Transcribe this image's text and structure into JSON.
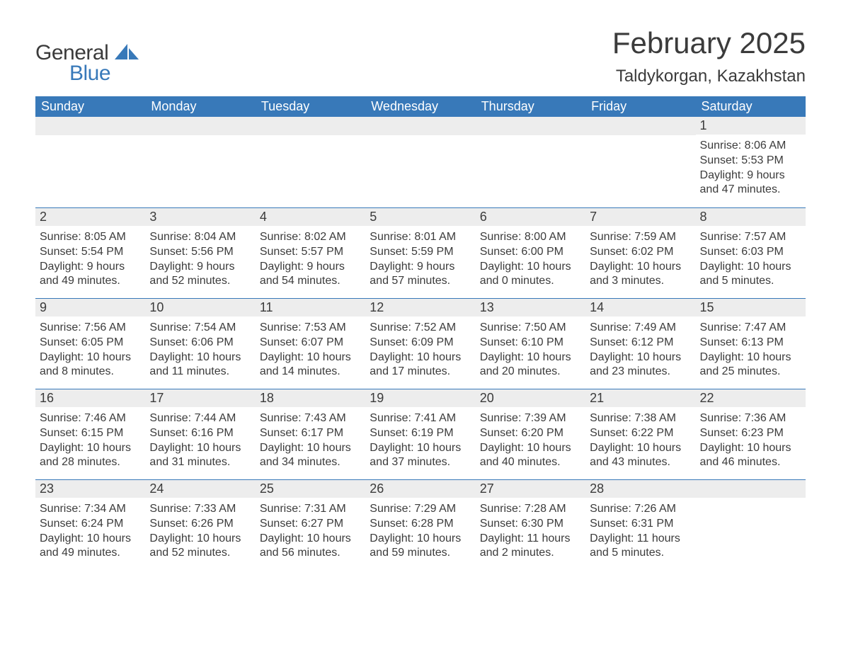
{
  "logo": {
    "text1": "General",
    "text2": "Blue",
    "accent_color": "#3879b9"
  },
  "title": "February 2025",
  "location": "Taldykorgan, Kazakhstan",
  "header_bg": "#3879b9",
  "header_fg": "#ffffff",
  "daybar_bg": "#ededed",
  "daybar_border": "#3879b9",
  "text_color": "#3b3b3b",
  "columns": [
    "Sunday",
    "Monday",
    "Tuesday",
    "Wednesday",
    "Thursday",
    "Friday",
    "Saturday"
  ],
  "weeks": [
    [
      null,
      null,
      null,
      null,
      null,
      null,
      {
        "n": "1",
        "sr": "8:06 AM",
        "ss": "5:53 PM",
        "dl": "9 hours and 47 minutes."
      }
    ],
    [
      {
        "n": "2",
        "sr": "8:05 AM",
        "ss": "5:54 PM",
        "dl": "9 hours and 49 minutes."
      },
      {
        "n": "3",
        "sr": "8:04 AM",
        "ss": "5:56 PM",
        "dl": "9 hours and 52 minutes."
      },
      {
        "n": "4",
        "sr": "8:02 AM",
        "ss": "5:57 PM",
        "dl": "9 hours and 54 minutes."
      },
      {
        "n": "5",
        "sr": "8:01 AM",
        "ss": "5:59 PM",
        "dl": "9 hours and 57 minutes."
      },
      {
        "n": "6",
        "sr": "8:00 AM",
        "ss": "6:00 PM",
        "dl": "10 hours and 0 minutes."
      },
      {
        "n": "7",
        "sr": "7:59 AM",
        "ss": "6:02 PM",
        "dl": "10 hours and 3 minutes."
      },
      {
        "n": "8",
        "sr": "7:57 AM",
        "ss": "6:03 PM",
        "dl": "10 hours and 5 minutes."
      }
    ],
    [
      {
        "n": "9",
        "sr": "7:56 AM",
        "ss": "6:05 PM",
        "dl": "10 hours and 8 minutes."
      },
      {
        "n": "10",
        "sr": "7:54 AM",
        "ss": "6:06 PM",
        "dl": "10 hours and 11 minutes."
      },
      {
        "n": "11",
        "sr": "7:53 AM",
        "ss": "6:07 PM",
        "dl": "10 hours and 14 minutes."
      },
      {
        "n": "12",
        "sr": "7:52 AM",
        "ss": "6:09 PM",
        "dl": "10 hours and 17 minutes."
      },
      {
        "n": "13",
        "sr": "7:50 AM",
        "ss": "6:10 PM",
        "dl": "10 hours and 20 minutes."
      },
      {
        "n": "14",
        "sr": "7:49 AM",
        "ss": "6:12 PM",
        "dl": "10 hours and 23 minutes."
      },
      {
        "n": "15",
        "sr": "7:47 AM",
        "ss": "6:13 PM",
        "dl": "10 hours and 25 minutes."
      }
    ],
    [
      {
        "n": "16",
        "sr": "7:46 AM",
        "ss": "6:15 PM",
        "dl": "10 hours and 28 minutes."
      },
      {
        "n": "17",
        "sr": "7:44 AM",
        "ss": "6:16 PM",
        "dl": "10 hours and 31 minutes."
      },
      {
        "n": "18",
        "sr": "7:43 AM",
        "ss": "6:17 PM",
        "dl": "10 hours and 34 minutes."
      },
      {
        "n": "19",
        "sr": "7:41 AM",
        "ss": "6:19 PM",
        "dl": "10 hours and 37 minutes."
      },
      {
        "n": "20",
        "sr": "7:39 AM",
        "ss": "6:20 PM",
        "dl": "10 hours and 40 minutes."
      },
      {
        "n": "21",
        "sr": "7:38 AM",
        "ss": "6:22 PM",
        "dl": "10 hours and 43 minutes."
      },
      {
        "n": "22",
        "sr": "7:36 AM",
        "ss": "6:23 PM",
        "dl": "10 hours and 46 minutes."
      }
    ],
    [
      {
        "n": "23",
        "sr": "7:34 AM",
        "ss": "6:24 PM",
        "dl": "10 hours and 49 minutes."
      },
      {
        "n": "24",
        "sr": "7:33 AM",
        "ss": "6:26 PM",
        "dl": "10 hours and 52 minutes."
      },
      {
        "n": "25",
        "sr": "7:31 AM",
        "ss": "6:27 PM",
        "dl": "10 hours and 56 minutes."
      },
      {
        "n": "26",
        "sr": "7:29 AM",
        "ss": "6:28 PM",
        "dl": "10 hours and 59 minutes."
      },
      {
        "n": "27",
        "sr": "7:28 AM",
        "ss": "6:30 PM",
        "dl": "11 hours and 2 minutes."
      },
      {
        "n": "28",
        "sr": "7:26 AM",
        "ss": "6:31 PM",
        "dl": "11 hours and 5 minutes."
      },
      null
    ]
  ],
  "labels": {
    "sunrise": "Sunrise: ",
    "sunset": "Sunset: ",
    "daylight": "Daylight: "
  }
}
